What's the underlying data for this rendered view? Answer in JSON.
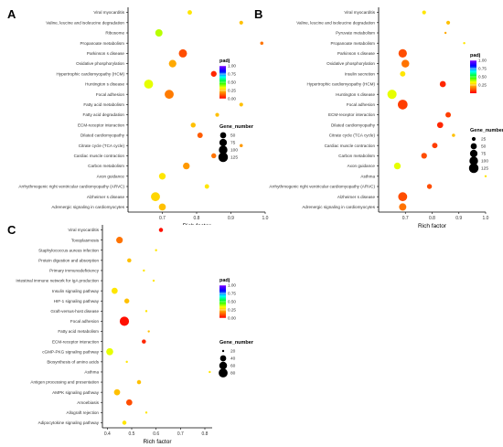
{
  "colors": {
    "scale": [
      "#ff0000",
      "#ff8000",
      "#ffff00",
      "#00ff00",
      "#00ffff",
      "#0000ff",
      "#8000ff"
    ],
    "axis": "#000000",
    "tick_label": "#333333"
  },
  "chart_data": [
    {
      "panel": "A",
      "type": "scatter",
      "xlabel": "Rich factor",
      "xlim": [
        0.6,
        1.0
      ],
      "xticks": [
        "0.7",
        "0.8",
        "0.9",
        "1.0"
      ],
      "legend_color_title": "padj",
      "legend_color_ticks": [
        "1.00",
        "0.75",
        "0.50",
        "0.25",
        "0.00"
      ],
      "legend_color_range": [
        0,
        1
      ],
      "legend_size_title": "Gene_number",
      "legend_size_values": [
        50,
        75,
        100,
        125
      ],
      "size_range": [
        20,
        140
      ],
      "points": [
        {
          "term": "Viral myocarditis",
          "x": 0.78,
          "padj": 0.3,
          "genes": 30
        },
        {
          "term": "Valine, leucine and isoleucine degradation",
          "x": 0.93,
          "padj": 0.25,
          "genes": 25
        },
        {
          "term": "Ribosome",
          "x": 0.69,
          "padj": 0.38,
          "genes": 70
        },
        {
          "term": "Propanoate metabolism",
          "x": 0.99,
          "padj": 0.15,
          "genes": 22
        },
        {
          "term": "Parkinson s disease",
          "x": 0.76,
          "padj": 0.1,
          "genes": 90
        },
        {
          "term": "Oxidative phosphorylation",
          "x": 0.73,
          "padj": 0.22,
          "genes": 75
        },
        {
          "term": "Hypertrophic cardiomyopathy (HCM)",
          "x": 0.85,
          "padj": 0.05,
          "genes": 45
        },
        {
          "term": "Huntington s disease",
          "x": 0.66,
          "padj": 0.35,
          "genes": 110
        },
        {
          "term": "Focal adhesion",
          "x": 0.72,
          "padj": 0.16,
          "genes": 110
        },
        {
          "term": "Fatty acid metabolism",
          "x": 0.93,
          "padj": 0.25,
          "genes": 25
        },
        {
          "term": "Fatty acid degradation",
          "x": 0.86,
          "padj": 0.25,
          "genes": 25
        },
        {
          "term": "ECM-receptor interaction",
          "x": 0.79,
          "padj": 0.25,
          "genes": 35
        },
        {
          "term": "Dilated cardiomyopathy",
          "x": 0.81,
          "padj": 0.12,
          "genes": 40
        },
        {
          "term": "Citrate cycle (TCA cycle)",
          "x": 0.93,
          "padj": 0.2,
          "genes": 22
        },
        {
          "term": "Cardiac muscle contraction",
          "x": 0.85,
          "padj": 0.15,
          "genes": 35
        },
        {
          "term": "Carbon metabolism",
          "x": 0.77,
          "padj": 0.2,
          "genes": 60
        },
        {
          "term": "Axon guidance",
          "x": 0.7,
          "padj": 0.3,
          "genes": 60
        },
        {
          "term": "Arrhythmogenic right ventricular cardiomyopathy (ARVC)",
          "x": 0.83,
          "padj": 0.3,
          "genes": 30
        },
        {
          "term": "Alzheimer s disease",
          "x": 0.68,
          "padj": 0.28,
          "genes": 110
        },
        {
          "term": "Adrenergic signaling in cardiomyocytes",
          "x": 0.7,
          "padj": 0.25,
          "genes": 65
        }
      ]
    },
    {
      "panel": "B",
      "type": "scatter",
      "xlabel": "Rich factor",
      "xlim": [
        0.6,
        1.0
      ],
      "xticks": [
        "0.7",
        "0.8",
        "0.9",
        "1.0"
      ],
      "legend_color_title": "padj",
      "legend_color_ticks": [
        "1.00",
        "0.75",
        "0.50",
        "0.25"
      ],
      "legend_color_range": [
        0,
        1
      ],
      "legend_size_title": "Gene_number",
      "legend_size_values": [
        25,
        50,
        75,
        100,
        125
      ],
      "size_range": [
        20,
        140
      ],
      "points": [
        {
          "term": "Viral myocarditis",
          "x": 0.77,
          "padj": 0.3,
          "genes": 25
        },
        {
          "term": "Valine, leucine and isoleucine degradation",
          "x": 0.86,
          "padj": 0.25,
          "genes": 25
        },
        {
          "term": "Pyruvate metabolism",
          "x": 0.85,
          "padj": 0.22,
          "genes": 20
        },
        {
          "term": "Propanoate metabolism",
          "x": 0.92,
          "padj": 0.3,
          "genes": 20
        },
        {
          "term": "Parkinson s disease",
          "x": 0.69,
          "padj": 0.1,
          "genes": 95
        },
        {
          "term": "Oxidative phosphorylation",
          "x": 0.7,
          "padj": 0.15,
          "genes": 80
        },
        {
          "term": "Insulin secretion",
          "x": 0.69,
          "padj": 0.3,
          "genes": 40
        },
        {
          "term": "Hypertrophic cardiomyopathy (HCM)",
          "x": 0.84,
          "padj": 0.05,
          "genes": 50
        },
        {
          "term": "Huntington s disease",
          "x": 0.65,
          "padj": 0.35,
          "genes": 115
        },
        {
          "term": "Focal adhesion",
          "x": 0.69,
          "padj": 0.08,
          "genes": 130
        },
        {
          "term": "ECM-receptor interaction",
          "x": 0.86,
          "padj": 0.08,
          "genes": 40
        },
        {
          "term": "Dilated cardiomyopathy",
          "x": 0.83,
          "padj": 0.05,
          "genes": 50
        },
        {
          "term": "Citrate cycle (TCA cycle)",
          "x": 0.88,
          "padj": 0.25,
          "genes": 22
        },
        {
          "term": "Cardiac muscle contraction",
          "x": 0.81,
          "padj": 0.08,
          "genes": 40
        },
        {
          "term": "Carbon metabolism",
          "x": 0.77,
          "padj": 0.1,
          "genes": 45
        },
        {
          "term": "Axon guidance",
          "x": 0.67,
          "padj": 0.35,
          "genes": 60
        },
        {
          "term": "Asthma",
          "x": 1.0,
          "padj": 0.3,
          "genes": 15
        },
        {
          "term": "Arrhythmogenic right ventricular cardiomyopathy (ARVC)",
          "x": 0.79,
          "padj": 0.1,
          "genes": 35
        },
        {
          "term": "Alzheimer s disease",
          "x": 0.69,
          "padj": 0.1,
          "genes": 110
        },
        {
          "term": "Adrenergic signaling in cardiomyocytes",
          "x": 0.69,
          "padj": 0.15,
          "genes": 70
        }
      ]
    },
    {
      "panel": "C",
      "type": "scatter",
      "xlabel": "Rich factor",
      "xlim": [
        0.38,
        0.83
      ],
      "xticks": [
        "0.4",
        "0.5",
        "0.6",
        "0.7",
        "0.8"
      ],
      "legend_color_title": "padj",
      "legend_color_ticks": [
        "1.00",
        "0.75",
        "0.50",
        "0.25",
        "0.00"
      ],
      "legend_color_range": [
        0,
        1
      ],
      "legend_size_title": "Gene_number",
      "legend_size_values": [
        20,
        40,
        60,
        80
      ],
      "size_range": [
        20,
        100
      ],
      "points": [
        {
          "term": "Viral myocarditis",
          "x": 0.62,
          "padj": 0.02,
          "genes": 25
        },
        {
          "term": "Toxoplasmosis",
          "x": 0.45,
          "padj": 0.15,
          "genes": 45
        },
        {
          "term": "Staphylococcus aureus infection",
          "x": 0.6,
          "padj": 0.3,
          "genes": 20
        },
        {
          "term": "Protein digestion and absorption",
          "x": 0.49,
          "padj": 0.25,
          "genes": 25
        },
        {
          "term": "Primary immunodeficiency",
          "x": 0.55,
          "padj": 0.3,
          "genes": 15
        },
        {
          "term": "Intestinal immune network for IgA production",
          "x": 0.59,
          "padj": 0.3,
          "genes": 20
        },
        {
          "term": "Insulin signaling pathway",
          "x": 0.43,
          "padj": 0.3,
          "genes": 40
        },
        {
          "term": "HIF-1 signaling pathway",
          "x": 0.48,
          "padj": 0.25,
          "genes": 30
        },
        {
          "term": "Graft-versus-host disease",
          "x": 0.56,
          "padj": 0.3,
          "genes": 15
        },
        {
          "term": "Focal adhesion",
          "x": 0.47,
          "padj": 0.02,
          "genes": 85
        },
        {
          "term": "Fatty acid metabolism",
          "x": 0.57,
          "padj": 0.25,
          "genes": 20
        },
        {
          "term": "ECM-receptor interaction",
          "x": 0.55,
          "padj": 0.05,
          "genes": 25
        },
        {
          "term": "cGMP-PKG signaling pathway",
          "x": 0.41,
          "padj": 0.35,
          "genes": 50
        },
        {
          "term": "Biosynthesis of amino acids",
          "x": 0.48,
          "padj": 0.3,
          "genes": 20
        },
        {
          "term": "Asthma",
          "x": 0.82,
          "padj": 0.3,
          "genes": 12
        },
        {
          "term": "Antigen processing and presentation",
          "x": 0.53,
          "padj": 0.25,
          "genes": 25
        },
        {
          "term": "AMPK signaling pathway",
          "x": 0.44,
          "padj": 0.25,
          "genes": 40
        },
        {
          "term": "Amoebiasis",
          "x": 0.49,
          "padj": 0.1,
          "genes": 40
        },
        {
          "term": "Allograft rejection",
          "x": 0.56,
          "padj": 0.3,
          "genes": 15
        },
        {
          "term": "Adipocytokine signaling pathway",
          "x": 0.47,
          "padj": 0.3,
          "genes": 25
        }
      ]
    }
  ]
}
